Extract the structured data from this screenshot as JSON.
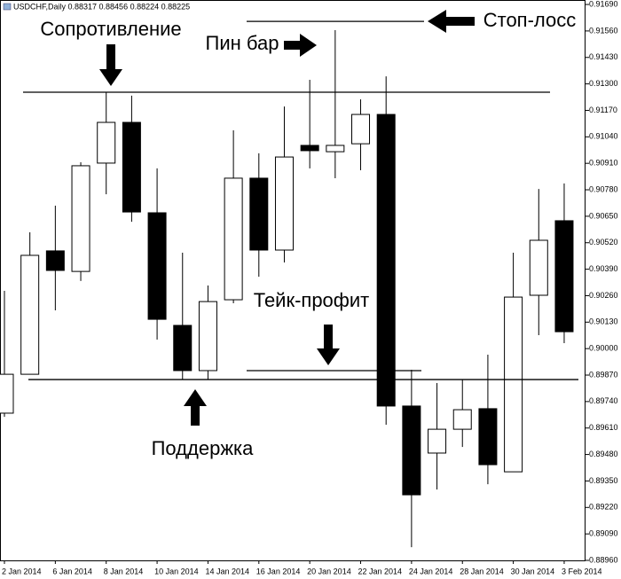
{
  "chart_data": {
    "type": "candlestick",
    "header": "USDCHF,Daily  0.88317 0.88456 0.88224 0.88225",
    "categories": [
      "2 Jan 2014",
      null,
      "6 Jan 2014",
      null,
      "8 Jan 2014",
      null,
      "10 Jan 2014",
      null,
      "14 Jan 2014",
      null,
      "16 Jan 2014",
      null,
      "20 Jan 2014",
      null,
      "22 Jan 2014",
      null,
      "24 Jan 2014",
      null,
      "28 Jan 2014",
      null,
      "30 Jan 2014",
      null,
      "3 Feb 2014"
    ],
    "open": [
      0.89683,
      0.89874,
      0.9048,
      0.90379,
      0.90911,
      0.91111,
      0.90667,
      0.90114,
      0.89892,
      0.9024,
      0.90837,
      0.90484,
      0.90998,
      0.90967,
      0.91006,
      0.9115,
      0.89718,
      0.89487,
      0.89604,
      0.89705,
      0.89395,
      0.90262,
      0.90628
    ],
    "high": [
      0.90284,
      0.90571,
      0.90702,
      0.90915,
      0.91259,
      0.91242,
      0.90885,
      0.90471,
      0.9031,
      0.91072,
      0.90959,
      0.91189,
      0.9132,
      0.91564,
      0.91224,
      0.91337,
      0.89896,
      0.89831,
      0.89848,
      0.8997,
      0.90471,
      0.90784,
      0.90811
    ],
    "low": [
      0.89665,
      0.89874,
      0.90188,
      0.90332,
      0.90758,
      0.90623,
      0.90044,
      0.89848,
      0.89848,
      0.90223,
      0.90353,
      0.90423,
      0.90885,
      0.90837,
      0.90876,
      0.89626,
      0.89025,
      0.89308,
      0.89517,
      0.89334,
      0.89395,
      0.90066,
      0.90027
    ],
    "close": [
      0.89874,
      0.90458,
      0.90384,
      0.90898,
      0.91111,
      0.90671,
      0.90144,
      0.89892,
      0.90231,
      0.90837,
      0.90484,
      0.90941,
      0.90972,
      0.90998,
      0.9115,
      0.89718,
      0.89282,
      0.89604,
      0.897,
      0.8943,
      0.90253,
      0.90532,
      0.90083
    ],
    "up_color": "#ffffff",
    "down_color": "#000000",
    "ylim": [
      0.8896,
      0.91712
    ],
    "yticks": [
      {
        "value": 0.9169,
        "label": "0.91690"
      },
      {
        "value": 0.9156,
        "label": "0.91560"
      },
      {
        "value": 0.9143,
        "label": "0.91430"
      },
      {
        "value": 0.913,
        "label": "0.91300"
      },
      {
        "value": 0.9117,
        "label": "0.91170"
      },
      {
        "value": 0.9104,
        "label": "0.91040"
      },
      {
        "value": 0.9091,
        "label": "0.90910"
      },
      {
        "value": 0.9078,
        "label": "0.90780"
      },
      {
        "value": 0.9065,
        "label": "0.90650"
      },
      {
        "value": 0.9052,
        "label": "0.90520"
      },
      {
        "value": 0.9039,
        "label": "0.90390"
      },
      {
        "value": 0.9026,
        "label": "0.90260"
      },
      {
        "value": 0.9013,
        "label": "0.90130"
      },
      {
        "value": 0.9,
        "label": "0.90000"
      },
      {
        "value": 0.8987,
        "label": "0.89870"
      },
      {
        "value": 0.8974,
        "label": "0.89740"
      },
      {
        "value": 0.8961,
        "label": "0.89610"
      },
      {
        "value": 0.8948,
        "label": "0.89480"
      },
      {
        "value": 0.8935,
        "label": "0.89350"
      },
      {
        "value": 0.8922,
        "label": "0.89220"
      },
      {
        "value": 0.8909,
        "label": "0.89090"
      },
      {
        "value": 0.8896,
        "label": "0.88960"
      }
    ],
    "levels": [
      0.91259,
      0.89848,
      0.91607,
      0.89892
    ],
    "annotations": [
      "Сопротивление",
      "Поддержка",
      "Стоп-лосс",
      "Тейк-профит",
      "Пин бар"
    ]
  }
}
